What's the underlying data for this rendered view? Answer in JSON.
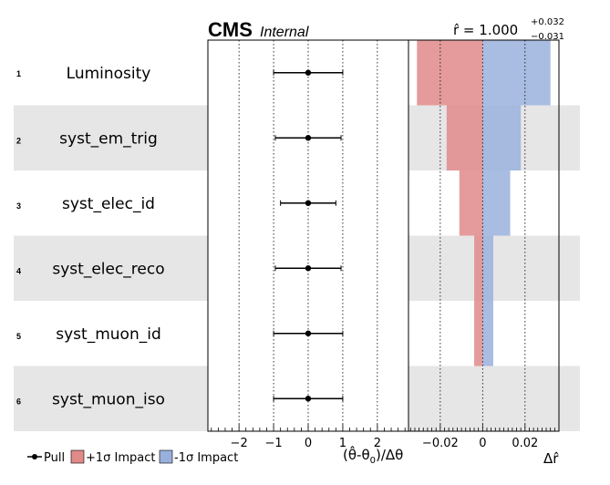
{
  "header": {
    "cms": "CMS",
    "internal": "Internal",
    "rhat_text": "r̂ = 1.000",
    "rhat_up": "+0.032",
    "rhat_down": "−0.031"
  },
  "legend": {
    "pull": "Pull",
    "plus_impact": "+1σ Impact",
    "minus_impact": "-1σ Impact"
  },
  "colors": {
    "plus_impact": "#e08a8a",
    "minus_impact": "#9ab0dc",
    "band": "#e6e6e6"
  },
  "chart_data": {
    "type": "bar",
    "rows": [
      {
        "rank": "1",
        "name": "Luminosity",
        "pull": 0.0,
        "pull_lo": -1.0,
        "pull_hi": 1.0,
        "impact_plus": -0.031,
        "impact_minus": 0.032
      },
      {
        "rank": "2",
        "name": "syst_em_trig",
        "pull": 0.0,
        "pull_lo": -0.95,
        "pull_hi": 0.95,
        "impact_plus": -0.017,
        "impact_minus": 0.018
      },
      {
        "rank": "3",
        "name": "syst_elec_id",
        "pull": 0.0,
        "pull_lo": -0.8,
        "pull_hi": 0.8,
        "impact_plus": -0.011,
        "impact_minus": 0.013
      },
      {
        "rank": "4",
        "name": "syst_elec_reco",
        "pull": 0.0,
        "pull_lo": -0.95,
        "pull_hi": 0.95,
        "impact_plus": -0.004,
        "impact_minus": 0.005
      },
      {
        "rank": "5",
        "name": "syst_muon_id",
        "pull": 0.0,
        "pull_lo": -1.0,
        "pull_hi": 1.0,
        "impact_plus": -0.004,
        "impact_minus": 0.005
      },
      {
        "rank": "6",
        "name": "syst_muon_iso",
        "pull": 0.0,
        "pull_lo": -1.0,
        "pull_hi": 1.0,
        "impact_plus": 0.0,
        "impact_minus": 0.0
      }
    ],
    "pull_axis": {
      "xlim": [
        -2.9,
        2.9
      ],
      "ticks": [
        -2,
        -1,
        0,
        1,
        2
      ],
      "tick_labels": [
        "−2",
        "−1",
        "0",
        "1",
        "2"
      ],
      "label": "(θ̂-θ₀)/Δθ",
      "label_main": "(θ̂-θ",
      "label_sub": "0",
      "label_tail": ")/Δθ"
    },
    "impact_axis": {
      "xlim": [
        -0.035,
        0.036
      ],
      "ticks": [
        -0.02,
        0,
        0.02
      ],
      "tick_labels": [
        "−0.02",
        "0",
        "0.02"
      ],
      "label": "Δr̂"
    }
  }
}
